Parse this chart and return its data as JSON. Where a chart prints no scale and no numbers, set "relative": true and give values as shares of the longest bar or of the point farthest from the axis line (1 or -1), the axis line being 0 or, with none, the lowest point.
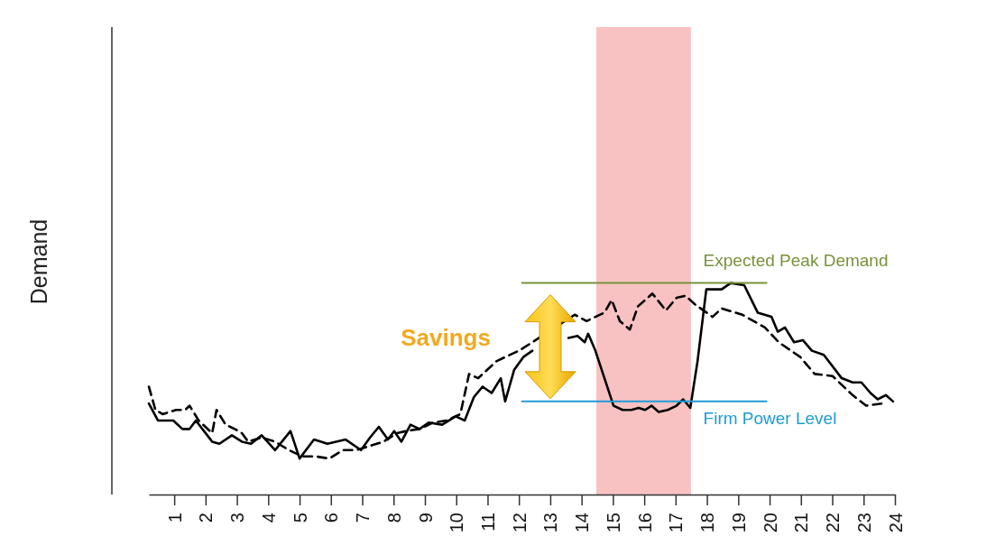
{
  "chart_data": {
    "type": "line",
    "ylabel": "Demand",
    "relative": true,
    "xlim": [
      0.19,
      24
    ],
    "xticks": [
      1,
      2,
      3,
      4,
      5,
      6,
      7,
      8,
      9,
      10,
      11,
      12,
      13,
      14,
      15,
      16,
      17,
      18,
      19,
      20,
      21,
      22,
      23,
      24
    ],
    "marker": "none",
    "annotations": [
      "Savings"
    ],
    "bands": [
      {
        "axis": "x",
        "from": 14.47,
        "to": 17.49,
        "color": "#f9c2c2"
      }
    ],
    "series": [
      {
        "color": "#000000",
        "line_style": "solid",
        "x": [
          0.19,
          0.48,
          0.97,
          1.26,
          1.49,
          1.69,
          2.21,
          2.44,
          2.84,
          3.16,
          3.45,
          3.79,
          4.22,
          4.71,
          5.0,
          5.46,
          5.89,
          6.47,
          6.96,
          7.25,
          7.53,
          7.82,
          8.02,
          8.25,
          8.54,
          8.83,
          9.12,
          9.55,
          9.98,
          10.27,
          10.56,
          10.84,
          11.13,
          11.42,
          11.56,
          11.85,
          12.14,
          12.43,
          12.72,
          13.0,
          13.29,
          13.58,
          13.87,
          14.1,
          14.21,
          14.44,
          14.73,
          15.02,
          15.31,
          15.59,
          15.82,
          16.03,
          16.23,
          16.46,
          16.75,
          17.03,
          17.24,
          17.47,
          17.7,
          17.98,
          18.47,
          18.76,
          19.19,
          19.62,
          20.06,
          20.26,
          20.49,
          20.78,
          21.06,
          21.35,
          21.73,
          22.3,
          22.65,
          22.93,
          23.22,
          23.45,
          23.71,
          23.94
        ],
        "values": [
          0.43,
          0.35,
          0.35,
          0.31,
          0.31,
          0.35,
          0.25,
          0.24,
          0.28,
          0.25,
          0.24,
          0.28,
          0.21,
          0.3,
          0.17,
          0.26,
          0.24,
          0.26,
          0.21,
          0.27,
          0.32,
          0.26,
          0.3,
          0.25,
          0.33,
          0.31,
          0.34,
          0.33,
          0.37,
          0.35,
          0.46,
          0.51,
          0.48,
          0.55,
          0.44,
          0.59,
          0.65,
          0.68,
          null,
          null,
          null,
          0.74,
          0.75,
          0.72,
          0.76,
          0.68,
          0.55,
          0.42,
          0.4,
          0.4,
          0.41,
          0.4,
          0.42,
          0.39,
          0.4,
          0.42,
          0.45,
          0.41,
          0.63,
          0.97,
          0.97,
          1.0,
          0.99,
          0.86,
          0.84,
          0.77,
          0.79,
          0.72,
          0.73,
          0.68,
          0.66,
          0.55,
          0.53,
          0.53,
          0.48,
          0.45,
          0.47,
          0.44
        ]
      },
      {
        "color": "#000000",
        "line_style": "dashed",
        "x": [
          0.19,
          0.4,
          0.63,
          1.06,
          1.35,
          1.49,
          1.78,
          2.21,
          2.35,
          2.64,
          2.93,
          3.16,
          3.36,
          3.79,
          4.22,
          4.66,
          5.09,
          5.52,
          5.95,
          6.38,
          6.81,
          7.25,
          7.68,
          8.11,
          8.4,
          8.83,
          9.26,
          9.69,
          10.13,
          10.41,
          10.7,
          10.99,
          11.28,
          11.56,
          12.0,
          12.43,
          13.78,
          14.16,
          14.73,
          14.96,
          15.22,
          15.54,
          15.8,
          16.26,
          16.69,
          17.03,
          17.32,
          17.61,
          18.18,
          18.47,
          19.13,
          19.85,
          20.29,
          20.98,
          21.44,
          22.01,
          22.65,
          23.08,
          23.57
        ],
        "values": [
          0.51,
          0.4,
          0.38,
          0.4,
          0.4,
          0.42,
          0.35,
          0.29,
          0.4,
          0.33,
          0.31,
          0.29,
          0.25,
          0.27,
          0.25,
          0.21,
          0.18,
          0.18,
          0.17,
          0.21,
          0.21,
          0.23,
          0.25,
          0.29,
          0.3,
          0.31,
          0.34,
          0.35,
          0.38,
          0.57,
          0.55,
          0.59,
          0.63,
          0.65,
          0.68,
          0.72,
          0.85,
          0.82,
          0.86,
          0.92,
          0.82,
          0.78,
          0.89,
          0.95,
          0.87,
          0.93,
          0.94,
          0.9,
          0.84,
          0.88,
          0.85,
          0.79,
          0.72,
          0.65,
          0.57,
          0.56,
          0.47,
          0.42,
          0.43
        ]
      },
      {
        "name": "Expected Peak Demand",
        "color": "#77933c",
        "line_style": "solid",
        "x": [
          12.1,
          19.9
        ],
        "values": [
          1.0,
          1.0
        ]
      },
      {
        "name": "Firm Power Level",
        "color": "#1f9bd7",
        "line_style": "solid",
        "x": [
          12.1,
          19.9
        ],
        "values": [
          0.44,
          0.44
        ]
      }
    ]
  }
}
